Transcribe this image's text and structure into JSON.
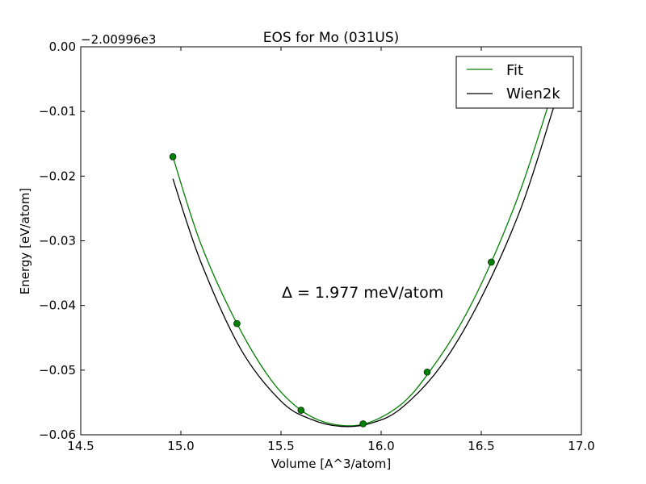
{
  "chart_data": {
    "type": "line",
    "title": "EOS for Mo (031US)",
    "xlabel": "Volume [A^3/atom]",
    "ylabel": "Energy [eV/atom]",
    "offset_label": "−2.00996e3",
    "annotation": "Δ = 1.977 meV/atom",
    "xlim": [
      14.5,
      17.0
    ],
    "ylim": [
      -0.06,
      0.0
    ],
    "xticks": [
      14.5,
      15.0,
      15.5,
      16.0,
      16.5,
      17.0
    ],
    "xtick_labels": [
      "14.5",
      "15.0",
      "15.5",
      "16.0",
      "16.5",
      "17.0"
    ],
    "yticks": [
      0.0,
      -0.01,
      -0.02,
      -0.03,
      -0.04,
      -0.05,
      -0.06
    ],
    "ytick_labels": [
      "0.00",
      "−0.01",
      "−0.02",
      "−0.03",
      "−0.04",
      "−0.05",
      "−0.06"
    ],
    "legend_position": "top-right",
    "grid": false,
    "series": [
      {
        "name": "Fit",
        "color": "#008000",
        "x": [
          14.96,
          15.1,
          15.28,
          15.45,
          15.6,
          15.75,
          15.92,
          16.1,
          16.24,
          16.4,
          16.55,
          16.7,
          16.84
        ],
        "y": [
          -0.017,
          -0.0305,
          -0.0428,
          -0.0515,
          -0.0562,
          -0.0583,
          -0.0583,
          -0.0553,
          -0.0503,
          -0.0427,
          -0.0333,
          -0.0218,
          -0.0085
        ]
      },
      {
        "name": "Wien2k",
        "color": "#000000",
        "x": [
          14.96,
          15.1,
          15.3,
          15.5,
          15.65,
          15.8,
          15.95,
          16.1,
          16.3,
          16.5,
          16.7,
          16.86
        ],
        "y": [
          -0.0204,
          -0.0333,
          -0.0468,
          -0.0548,
          -0.0576,
          -0.0587,
          -0.0582,
          -0.0559,
          -0.0493,
          -0.0388,
          -0.0248,
          -0.0095
        ]
      }
    ],
    "points": {
      "color": "#008000",
      "x": [
        14.96,
        15.28,
        15.6,
        15.91,
        16.23,
        16.55
      ],
      "y": [
        -0.017,
        -0.0428,
        -0.0562,
        -0.0583,
        -0.0503,
        -0.0333
      ]
    }
  }
}
